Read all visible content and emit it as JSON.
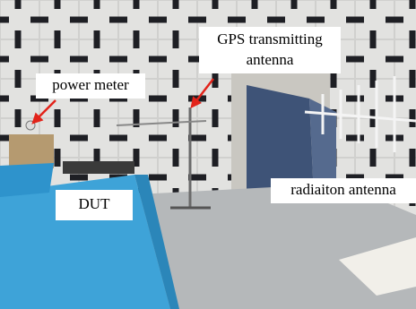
{
  "annotations": [
    {
      "lines": [
        "GPS transmitting",
        "antenna"
      ]
    },
    {
      "lines": [
        "power meter"
      ]
    },
    {
      "lines": [
        "DUT"
      ]
    },
    {
      "lines": [
        "radiaiton antenna"
      ]
    }
  ]
}
